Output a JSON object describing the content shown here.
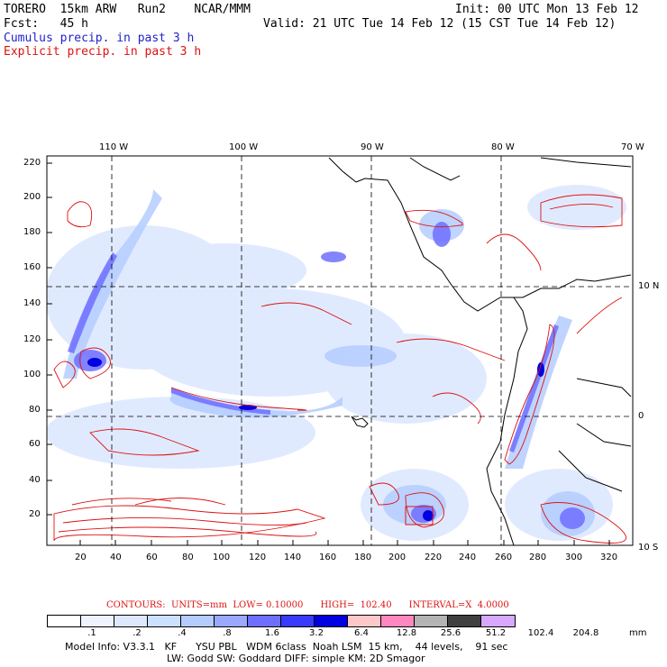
{
  "header": {
    "line1_left": "TORERO  15km ARW   Run2    NCAR/MMM",
    "line1_right": "Init: 00 UTC Mon 13 Feb 12",
    "line2_left": "Fcst:   45 h",
    "line2_right": "Valid: 21 UTC Tue 14 Feb 12 (15 CST Tue 14 Feb 12)",
    "line3": "Cumulus precip. in past 3 h",
    "line4": "Explicit precip. in past 3 h"
  },
  "map": {
    "top_lon_labels": [
      "110 W",
      "100 W",
      "90 W",
      "80 W",
      "70 W"
    ],
    "right_lat_labels": [
      "10 N",
      "0",
      "10 S"
    ],
    "left_ticks": [
      "220",
      "200",
      "180",
      "160",
      "140",
      "120",
      "100",
      "80",
      "60",
      "40",
      "20"
    ],
    "bottom_ticks": [
      "20",
      "40",
      "60",
      "80",
      "100",
      "120",
      "140",
      "160",
      "180",
      "200",
      "220",
      "240",
      "260",
      "280",
      "300",
      "320"
    ]
  },
  "legend": {
    "contours_line": "CONTOURS:  UNITS=mm  LOW= 0.10000      HIGH=  102.40      INTERVAL=X  4.0000",
    "levels": [
      ".1",
      ".2",
      ".4",
      ".8",
      "1.6",
      "3.2",
      "6.4",
      "12.8",
      "25.6",
      "51.2",
      "102.4",
      "204.8"
    ],
    "colors": [
      "#ffffff",
      "#eef3ff",
      "#dde8ff",
      "#cce0ff",
      "#b4ccff",
      "#9aa8ff",
      "#6e6eff",
      "#3a3aff",
      "#0000e0",
      "#ffc8c8",
      "#ff88c0",
      "#b4b4b4",
      "#404040",
      "#d8a8ff"
    ],
    "units": "mm"
  },
  "model_info": {
    "line1": "Model Info: V3.3.1   KF      YSU PBL   WDM 6class  Noah LSM  15 km,    44 levels,    91 sec",
    "line2": "LW: Godd SW: Goddard DIFF: simple KM: 2D Smagor"
  }
}
